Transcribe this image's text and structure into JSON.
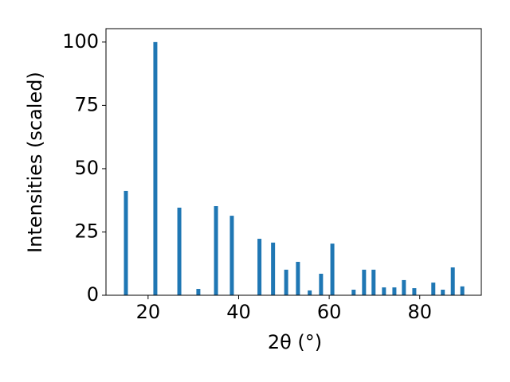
{
  "chart_data": {
    "type": "bar",
    "x_label": "2θ (°)",
    "y_label": "Intensities (scaled)",
    "x": [
      15.1,
      21.6,
      26.9,
      31.1,
      35.0,
      38.5,
      44.6,
      47.6,
      50.5,
      53.1,
      55.7,
      58.2,
      60.7,
      65.4,
      67.7,
      69.8,
      72.1,
      74.4,
      76.5,
      78.8,
      83.0,
      85.1,
      87.3,
      89.4
    ],
    "values": [
      41.2,
      100,
      34.6,
      2.5,
      35.2,
      31.4,
      22.3,
      20.8,
      10.1,
      13.2,
      1.9,
      8.5,
      20.4,
      2.2,
      10.1,
      10.1,
      3.1,
      3.1,
      6.0,
      2.8,
      5.0,
      2.2,
      11.0,
      3.5
    ],
    "color": "#1f77b4",
    "xlim": [
      10.7,
      93.6
    ],
    "xticks": [
      20,
      40,
      60,
      80
    ],
    "ylim": [
      0,
      105.3
    ],
    "yticks": [
      0,
      25,
      50,
      75,
      100
    ]
  }
}
